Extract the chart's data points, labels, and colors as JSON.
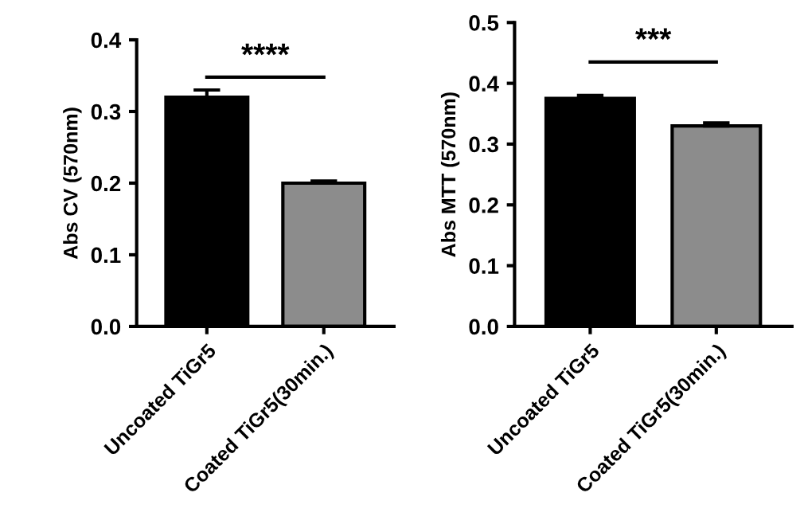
{
  "chart_data": [
    {
      "type": "bar",
      "ylabel": "Abs CV (570nm)",
      "categories": [
        "Uncoated TiGr5",
        "Coated TiGr5(30min.)"
      ],
      "values": [
        0.32,
        0.2
      ],
      "colors": [
        "#000000",
        "#8c8c8c"
      ],
      "errors": [
        0.01,
        0.003
      ],
      "ylim": [
        0,
        0.4
      ],
      "yticks": [
        {
          "value": 0,
          "label": "0.0"
        },
        0.1,
        0.2,
        0.3,
        0.4
      ],
      "grid": false,
      "annotations": [
        "****"
      ]
    },
    {
      "type": "bar",
      "ylabel": "Abs MTT (570nm)",
      "categories": [
        "Uncoated TiGr5",
        "Coated TiGr5(30min.)"
      ],
      "values": [
        0.375,
        0.33
      ],
      "colors": [
        "#000000",
        "#8c8c8c"
      ],
      "errors": [
        0.005,
        0.005
      ],
      "ylim": [
        0,
        0.5
      ],
      "yticks": [
        {
          "value": 0,
          "label": "0.0"
        },
        0.1,
        0.2,
        0.3,
        0.4,
        0.5
      ],
      "grid": false,
      "annotations": [
        "***"
      ]
    }
  ]
}
